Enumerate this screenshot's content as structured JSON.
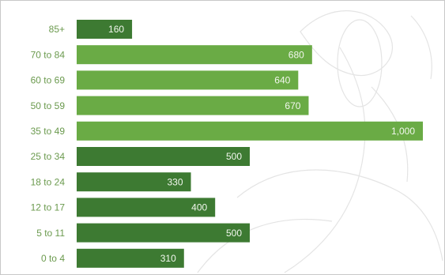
{
  "chart_data": {
    "type": "bar",
    "orientation": "horizontal",
    "categories": [
      "85+",
      "70 to 84",
      "60 to 69",
      "50 to 59",
      "35 to 49",
      "25 to 34",
      "18 to 24",
      "12 to 17",
      "5 to 11",
      "0 to 4"
    ],
    "values": [
      160,
      680,
      640,
      670,
      1000,
      500,
      330,
      400,
      500,
      310
    ],
    "value_labels": [
      "160",
      "680",
      "640",
      "670",
      "1,000",
      "500",
      "330",
      "400",
      "500",
      "310"
    ],
    "colors": [
      "#3d7a32",
      "#6aab45",
      "#6aab45",
      "#6aab45",
      "#6aab45",
      "#3d7a32",
      "#3d7a32",
      "#3d7a32",
      "#3d7a32",
      "#3d7a32"
    ]
  }
}
